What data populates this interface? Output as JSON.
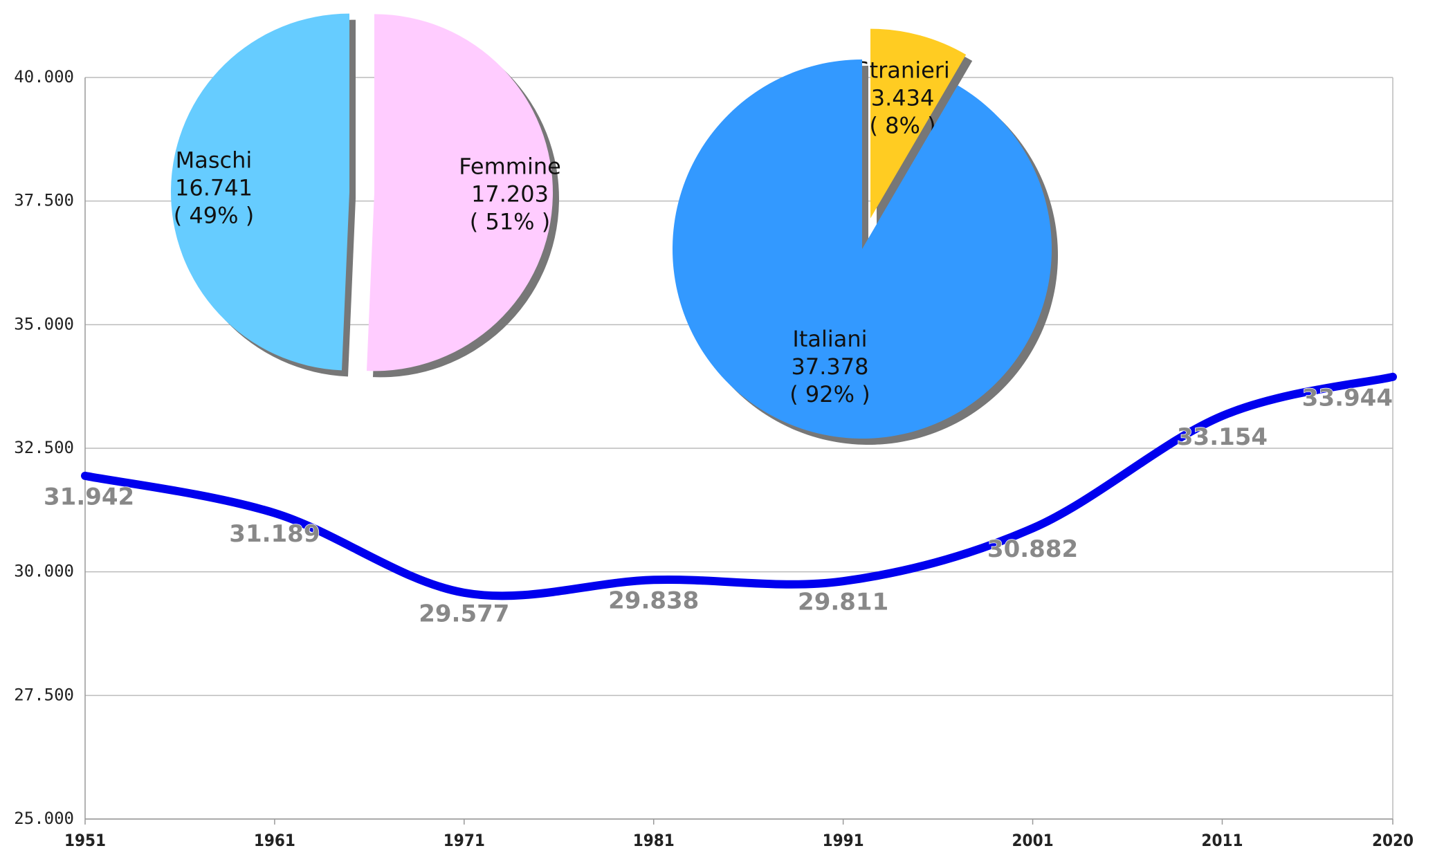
{
  "chart_data": [
    {
      "type": "line",
      "x": [
        1951,
        1961,
        1971,
        1981,
        1991,
        2001,
        2011,
        2020
      ],
      "values": [
        31942,
        31189,
        29577,
        29838,
        29811,
        30882,
        33154,
        33944
      ],
      "value_labels": [
        "31.942",
        "31.189",
        "29.577",
        "29.838",
        "29.811",
        "30.882",
        "33.154",
        "33.944"
      ],
      "color": "#0000ee",
      "xlim": [
        1951,
        2020
      ],
      "xticks": [
        1951,
        1961,
        1971,
        1981,
        1991,
        2001,
        2011,
        2020
      ],
      "ylim": [
        25000,
        40000
      ],
      "yticks": [
        {
          "value": 25000,
          "label": "25.000"
        },
        {
          "value": 27500,
          "label": "27.500"
        },
        {
          "value": 30000,
          "label": "30.000"
        },
        {
          "value": 32500,
          "label": "32.500"
        },
        {
          "value": 35000,
          "label": "35.000"
        },
        {
          "value": 37500,
          "label": "37.500"
        },
        {
          "value": 40000,
          "label": "40.000"
        }
      ],
      "grid": true
    },
    {
      "type": "pie",
      "categories": [
        "Femmine",
        "Maschi"
      ],
      "values": [
        17203,
        16741
      ],
      "value_labels": [
        "17.203",
        "16.741"
      ],
      "percent_labels": [
        "( 51% )",
        "( 49% )"
      ],
      "colors": [
        "#ffccff",
        "#66ccff"
      ]
    },
    {
      "type": "pie",
      "categories": [
        "Stranieri",
        "Italiani"
      ],
      "values": [
        3434,
        37378
      ],
      "value_labels": [
        "3.434",
        "37.378"
      ],
      "percent_labels": [
        "( 8% )",
        "( 92% )"
      ],
      "colors": [
        "#ffcc22",
        "#3399ff"
      ]
    }
  ]
}
